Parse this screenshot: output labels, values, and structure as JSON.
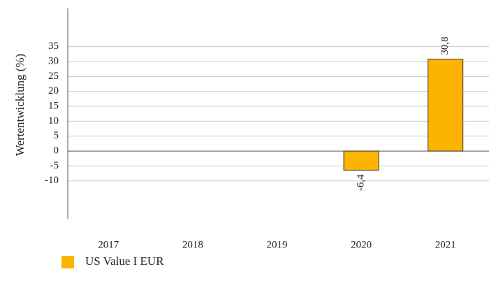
{
  "chart_data": {
    "type": "bar",
    "categories": [
      "2017",
      "2018",
      "2019",
      "2020",
      "2021"
    ],
    "series": [
      {
        "name": "US Value  I EUR",
        "color": "#fcb400",
        "values": [
          null,
          null,
          null,
          -6.4,
          30.8
        ],
        "value_labels": [
          null,
          null,
          null,
          "-6,4",
          "30,8"
        ]
      }
    ],
    "y_label": "Wertentwicklung (%)",
    "ylim": [
      -22.7,
      47.8
    ],
    "yticks": [
      -10,
      -5,
      0,
      5,
      10,
      15,
      20,
      25,
      30,
      35
    ],
    "grid": true,
    "legend": "bottom-left"
  }
}
